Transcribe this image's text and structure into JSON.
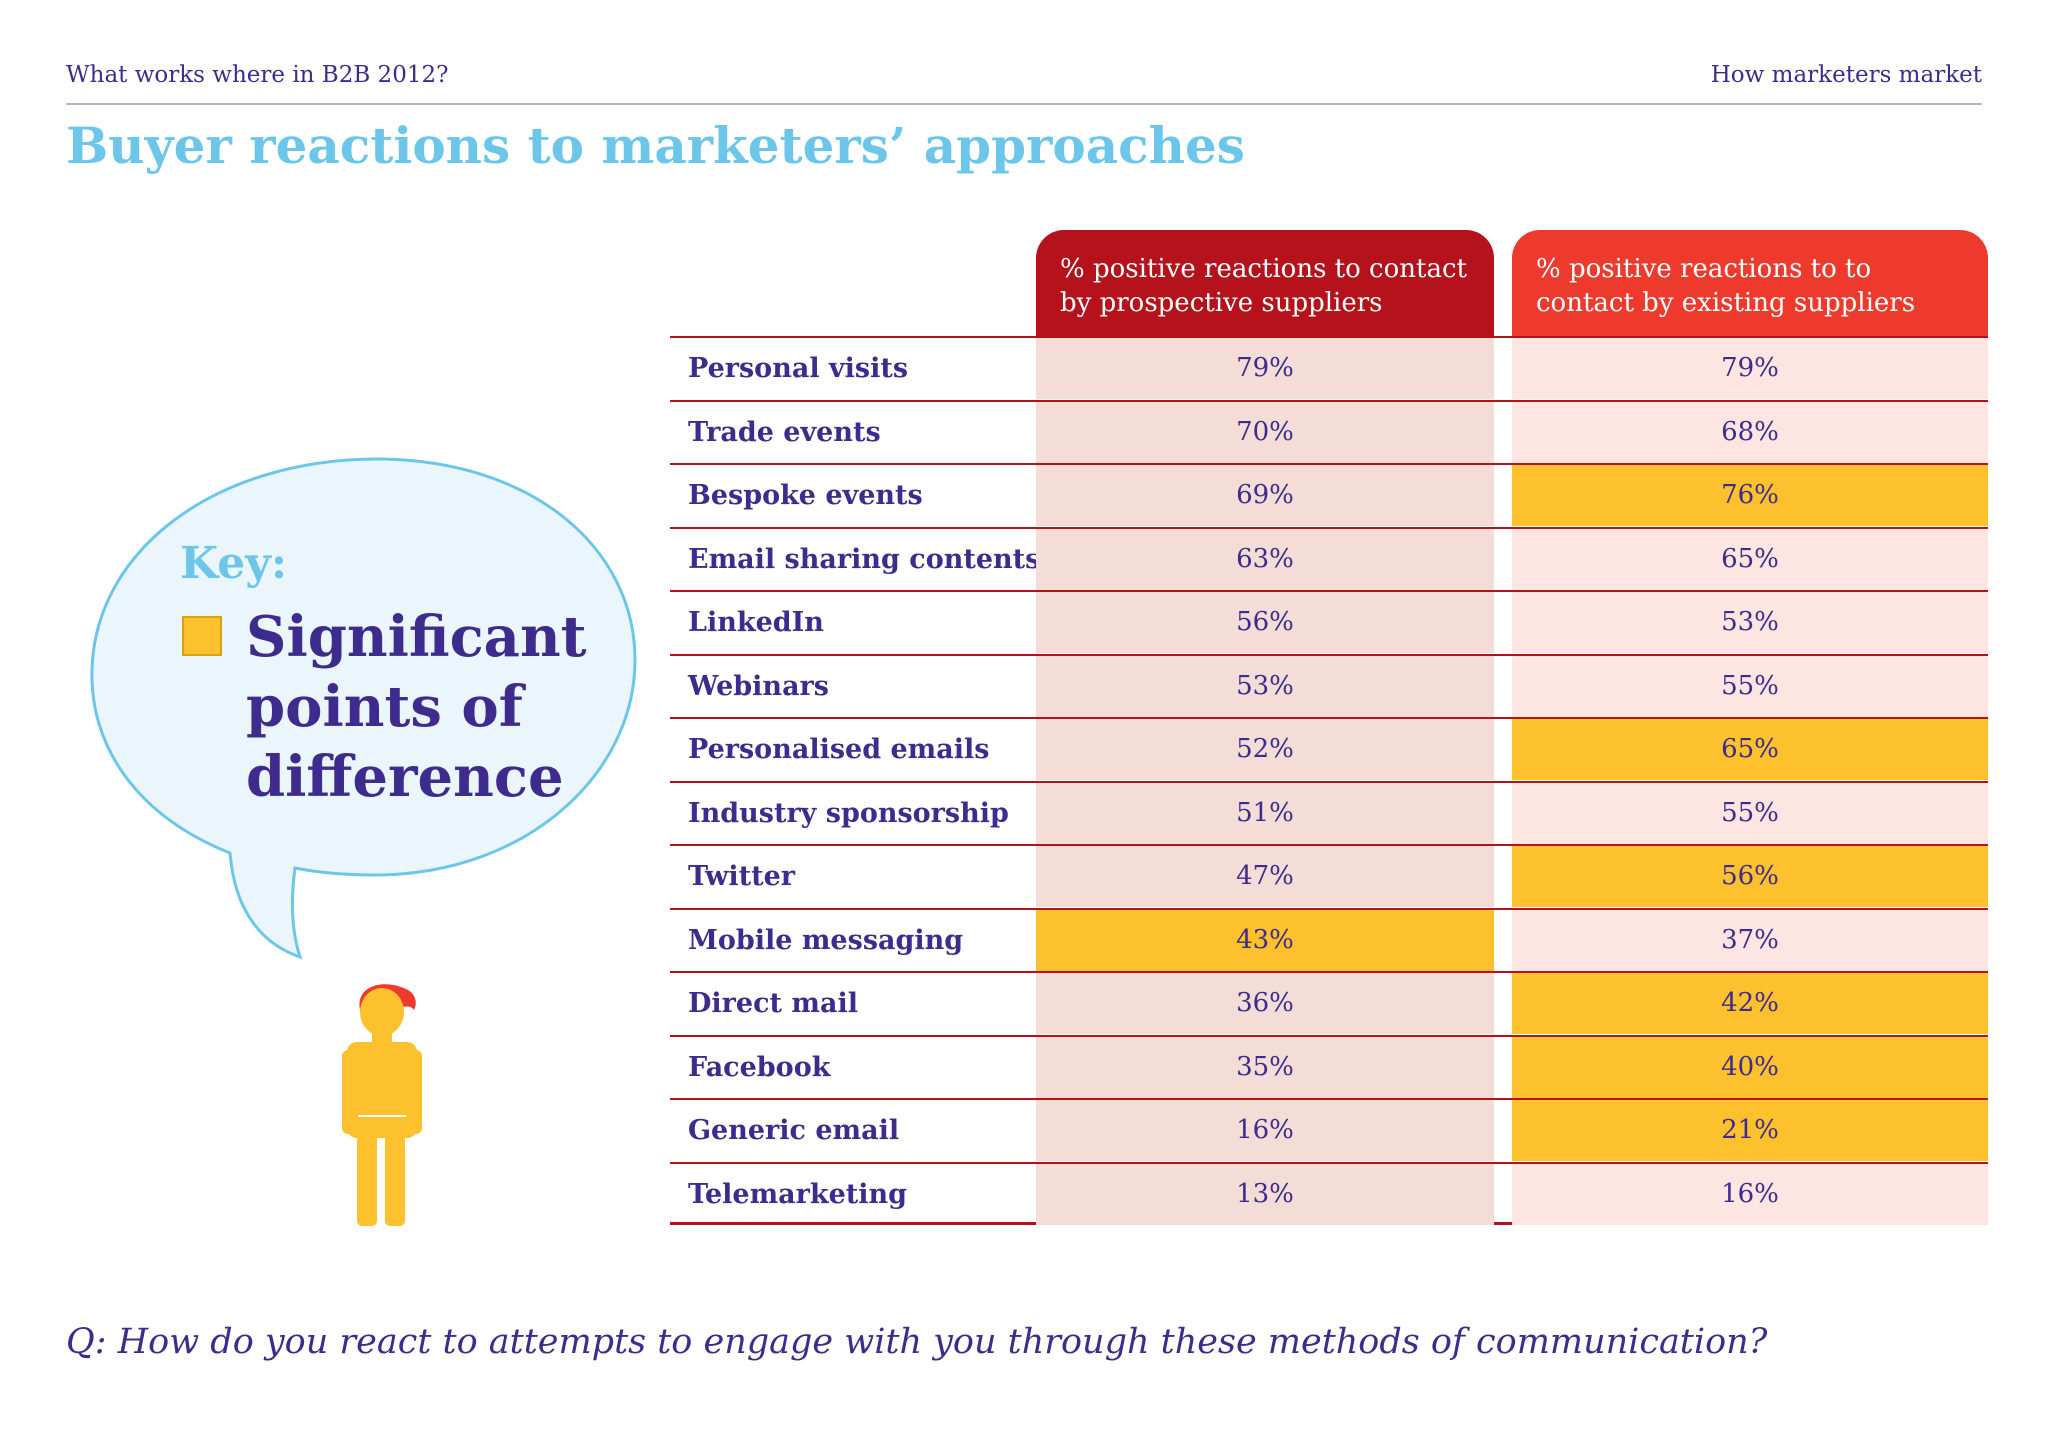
{
  "header": {
    "left": "What works where in B2B 2012?",
    "right": "How marketers market"
  },
  "title": "Buyer reactions to marketers’ approaches",
  "key": {
    "label": "Key:",
    "text": "Significant points of difference",
    "highlight_color": "#fcc12c"
  },
  "colors": {
    "header_prospective": "#b5121b",
    "header_existing": "#ee3a2c",
    "title": "#6cc6ea",
    "text": "#3d2c8d"
  },
  "question": "Q: How do you react to attempts to engage with you through these methods of communication?",
  "chart_data": {
    "type": "table",
    "columns": [
      "% positive reactions to contact by prospective suppliers",
      "% positive reactions to to contact by existing suppliers"
    ],
    "rows": [
      {
        "label": "Personal visits",
        "prospective": "79%",
        "existing": "79%",
        "hl_prospective": false,
        "hl_existing": false
      },
      {
        "label": "Trade events",
        "prospective": "70%",
        "existing": "68%",
        "hl_prospective": false,
        "hl_existing": false
      },
      {
        "label": "Bespoke events",
        "prospective": "69%",
        "existing": "76%",
        "hl_prospective": false,
        "hl_existing": true
      },
      {
        "label": "Email sharing contents",
        "prospective": "63%",
        "existing": "65%",
        "hl_prospective": false,
        "hl_existing": false
      },
      {
        "label": "LinkedIn",
        "prospective": "56%",
        "existing": "53%",
        "hl_prospective": false,
        "hl_existing": false
      },
      {
        "label": "Webinars",
        "prospective": "53%",
        "existing": "55%",
        "hl_prospective": false,
        "hl_existing": false
      },
      {
        "label": "Personalised emails",
        "prospective": "52%",
        "existing": "65%",
        "hl_prospective": false,
        "hl_existing": true
      },
      {
        "label": "Industry sponsorship",
        "prospective": "51%",
        "existing": "55%",
        "hl_prospective": false,
        "hl_existing": false
      },
      {
        "label": "Twitter",
        "prospective": "47%",
        "existing": "56%",
        "hl_prospective": false,
        "hl_existing": true
      },
      {
        "label": "Mobile messaging",
        "prospective": "43%",
        "existing": "37%",
        "hl_prospective": true,
        "hl_existing": false
      },
      {
        "label": "Direct mail",
        "prospective": "36%",
        "existing": "42%",
        "hl_prospective": false,
        "hl_existing": true
      },
      {
        "label": "Facebook",
        "prospective": "35%",
        "existing": "40%",
        "hl_prospective": false,
        "hl_existing": true
      },
      {
        "label": "Generic email",
        "prospective": "16%",
        "existing": "21%",
        "hl_prospective": false,
        "hl_existing": true
      },
      {
        "label": "Telemarketing",
        "prospective": "13%",
        "existing": "16%",
        "hl_prospective": false,
        "hl_existing": false
      }
    ]
  }
}
